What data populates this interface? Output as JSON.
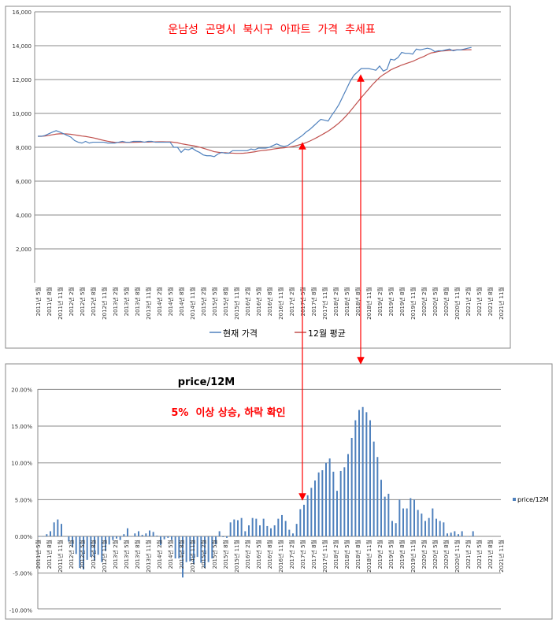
{
  "chart_data": [
    {
      "type": "line",
      "title": "운남성  곤명시  북시구  아파트  가격  추세표",
      "ylim": [
        0,
        16000
      ],
      "yticks": [
        "",
        "2,000",
        "4,000",
        "6,000",
        "8,000",
        "10,000",
        "12,000",
        "14,000",
        "16,000"
      ],
      "ytick_values": [
        0,
        2000,
        4000,
        6000,
        8000,
        10000,
        12000,
        14000,
        16000
      ],
      "grid": true,
      "legend": "bottom",
      "x_labels": [
        "2011년 5월",
        "2011년 8월",
        "2011년 11월",
        "2012년 2월",
        "2012년 5월",
        "2012년 8월",
        "2012년 11월",
        "2013년 2월",
        "2013년 5월",
        "2013년 8월",
        "2013년 11월",
        "2014년 2월",
        "2014년 5월",
        "2014년 8월",
        "2014년 11월",
        "2015년 2월",
        "2015년 5월",
        "2015년 8월",
        "2015년 11월",
        "2016년 2월",
        "2016년 5월",
        "2016년 8월",
        "2016년 11월",
        "2017년 2월",
        "2017년 5월",
        "2017년 8월",
        "2017년 11월",
        "2018년 2월",
        "2018년 5월",
        "2018년 8월",
        "2018년 11월",
        "2019년 2월",
        "2019년 5월",
        "2019년 8월",
        "2019년 11월",
        "2020년 2월",
        "2020년 5월",
        "2020년 8월",
        "2020년 11월",
        "2021년 2월",
        "2021년 5월",
        "2021년 8월",
        "2021년 11월"
      ],
      "series": [
        {
          "name": "현재 가격",
          "color": "#4f81bd",
          "values": [
            8650,
            8650,
            8700,
            8800,
            8900,
            8980,
            8900,
            8800,
            8700,
            8600,
            8400,
            8300,
            8250,
            8350,
            8250,
            8300,
            8300,
            8300,
            8300,
            8250,
            8250,
            8250,
            8300,
            8350,
            8300,
            8300,
            8350,
            8350,
            8350,
            8300,
            8350,
            8350,
            8300,
            8300,
            8300,
            8300,
            8300,
            8000,
            8000,
            7700,
            7900,
            7850,
            7950,
            7800,
            7700,
            7550,
            7500,
            7500,
            7450,
            7600,
            7700,
            7650,
            7650,
            7800,
            7800,
            7800,
            7800,
            7800,
            7900,
            7850,
            7950,
            7950,
            7950,
            8000,
            8100,
            8200,
            8100,
            8050,
            8100,
            8250,
            8400,
            8550,
            8700,
            8900,
            9050,
            9250,
            9450,
            9650,
            9600,
            9550,
            9900,
            10200,
            10550,
            11000,
            11450,
            11900,
            12250,
            12450,
            12650,
            12650,
            12650,
            12600,
            12550,
            12800,
            12500,
            12600,
            13200,
            13150,
            13300,
            13600,
            13550,
            13550,
            13500,
            13800,
            13750,
            13800,
            13850,
            13800,
            13650,
            13700,
            13700,
            13750,
            13800,
            13700,
            13750,
            13750,
            13800,
            13850,
            13900
          ]
        },
        {
          "name": "12월 평균",
          "color": "#c0504d",
          "method": "trailing 12-month average of 현재 가격"
        }
      ]
    },
    {
      "type": "bar",
      "title": "price/12M",
      "annotation": "5%  이상 상승, 하락 확인",
      "ylim": [
        -10,
        20
      ],
      "yticks": [
        "-10.00%",
        "-5.00%",
        "0.00%",
        "5.00%",
        "10.00%",
        "15.00%",
        "20.00%"
      ],
      "ytick_values": [
        -10,
        -5,
        0,
        5,
        10,
        15,
        20
      ],
      "grid": true,
      "legend": "right",
      "series": [
        {
          "name": "price/12M",
          "color": "#4f81bd",
          "values": [
            0,
            0,
            0.3,
            0.7,
            1.9,
            2.3,
            1.7,
            0,
            -0.7,
            -1.4,
            -2.4,
            -4.3,
            -4.5,
            -3.2,
            -2.8,
            -3.3,
            -2.5,
            -3.5,
            -2.0,
            -1.1,
            -0.5,
            -0.3,
            -0.5,
            0.3,
            1.1,
            0,
            0.4,
            0.7,
            0.2,
            0.4,
            0.8,
            0.6,
            0.1,
            -1.2,
            -0.4,
            -0.2,
            -0.5,
            -3,
            -3,
            -5.6,
            -3.5,
            -3.4,
            -3.8,
            -2.8,
            -3.6,
            -4.3,
            -3.5,
            -3.0,
            -1.1,
            0.7,
            -0.1,
            -0.2,
            1.9,
            2.3,
            2.2,
            2.5,
            0.7,
            1.5,
            2.5,
            2.4,
            1.5,
            2.4,
            1.4,
            1.1,
            1.5,
            2.4,
            2.9,
            2.1,
            0.9,
            0.4,
            1.7,
            3.7,
            4.3,
            5.6,
            6.6,
            7.6,
            8.7,
            9.0,
            10.0,
            10.6,
            8.8,
            6.2,
            8.9,
            9.4,
            11.2,
            13.4,
            15.8,
            17.2,
            17.6,
            16.9,
            15.8,
            12.9,
            10.8,
            7.7,
            5.4,
            5.8,
            2.1,
            1.8,
            5.0,
            3.8,
            3.8,
            5.2,
            5.0,
            3.6,
            3.1,
            2.1,
            2.5,
            3.8,
            2.4,
            2.1,
            1.9,
            0.4,
            0.5,
            0.7,
            0.3,
            0.7,
            0,
            0,
            0.7
          ]
        }
      ]
    }
  ],
  "annotation_color": "#ff0000"
}
